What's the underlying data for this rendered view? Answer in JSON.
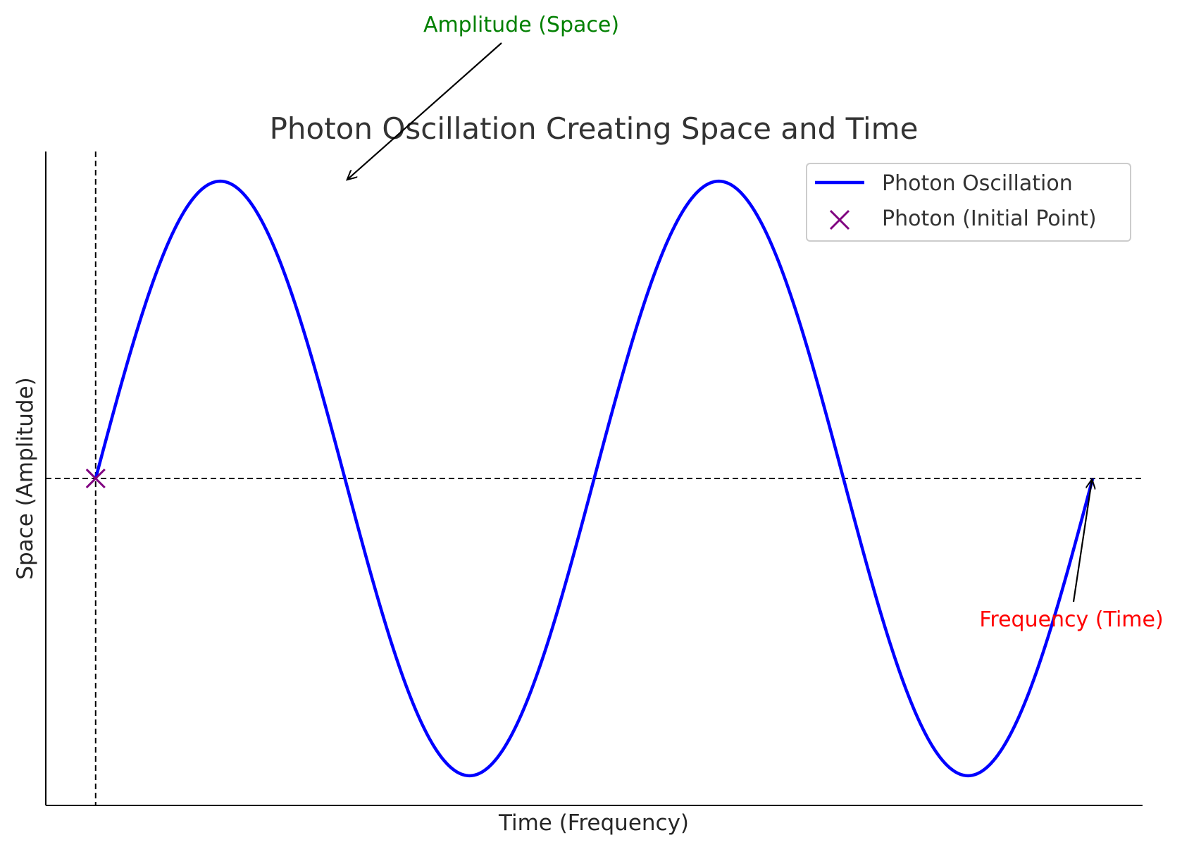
{
  "chart_data": {
    "type": "line",
    "title": "Photon Oscillation Creating Space and Time",
    "xlabel": "Time (Frequency)",
    "ylabel": "Space (Amplitude)",
    "xlim": [
      -0.1,
      2.1
    ],
    "ylim": [
      -1.1,
      1.1
    ],
    "grid": false,
    "legend_position": "top-right",
    "series": [
      {
        "name": "Photon Oscillation",
        "kind": "line",
        "color": "#0000ff",
        "function": "sin(2*pi*x)",
        "x_range": [
          0,
          2
        ]
      },
      {
        "name": "Photon (Initial Point)",
        "kind": "marker",
        "marker": "x",
        "color": "#800080",
        "x": [
          0
        ],
        "y": [
          0
        ]
      }
    ],
    "reference_lines": [
      {
        "orientation": "horizontal",
        "y": 0,
        "style": "dashed",
        "color": "#000000"
      },
      {
        "orientation": "vertical",
        "x": 0,
        "style": "dashed",
        "color": "#000000"
      }
    ],
    "annotations": [
      {
        "text": "Amplitude (Space)",
        "color": "#008000",
        "points_to": {
          "x": 0.5,
          "y": 1.0
        }
      },
      {
        "text": "Frequency (Time)",
        "color": "#ff0000",
        "points_to": {
          "x": 2.0,
          "y": 0.0
        }
      }
    ]
  }
}
